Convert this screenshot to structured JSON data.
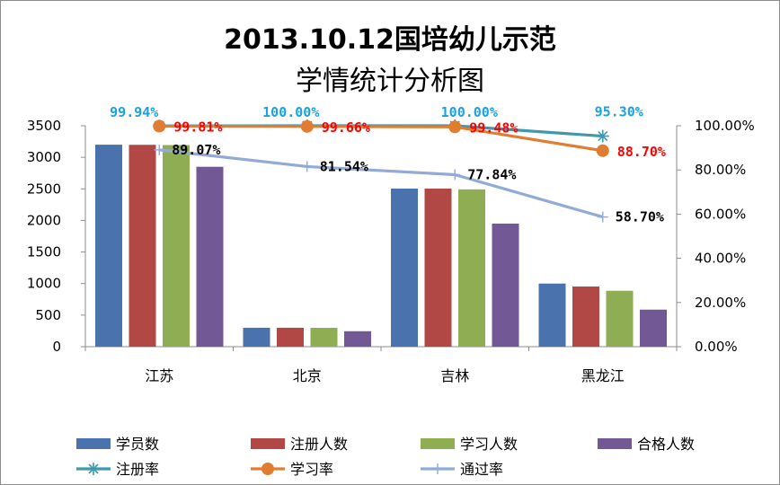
{
  "title_line1": "2013.10.12国培幼儿示范",
  "title_line2": "学情统计分析图",
  "chart_data": {
    "type": "bar",
    "categories": [
      "江苏",
      "北京",
      "吉林",
      "黑龙江"
    ],
    "series": [
      {
        "name": "学员数",
        "kind": "bar",
        "axis": "left",
        "color": "#4a73ad",
        "values": [
          3200,
          300,
          2505,
          1000
        ]
      },
      {
        "name": "注册人数",
        "kind": "bar",
        "axis": "left",
        "color": "#b24846",
        "values": [
          3198,
          300,
          2505,
          953
        ]
      },
      {
        "name": "学习人数",
        "kind": "bar",
        "axis": "left",
        "color": "#8fae54",
        "values": [
          3194,
          299,
          2492,
          886
        ]
      },
      {
        "name": "合格人数",
        "kind": "bar",
        "axis": "left",
        "color": "#735896",
        "values": [
          2850,
          245,
          1950,
          587
        ]
      },
      {
        "name": "注册率",
        "kind": "line",
        "axis": "right",
        "color": "#3f98ac",
        "marker": "star",
        "values": [
          99.94,
          100.0,
          100.0,
          95.3
        ],
        "labels": [
          "99.94%",
          "100.00%",
          "100.00%",
          "95.30%"
        ],
        "label_color": "#1aa1e0"
      },
      {
        "name": "学习率",
        "kind": "line",
        "axis": "right",
        "color": "#e07d30",
        "marker": "circle",
        "values": [
          99.81,
          99.66,
          99.48,
          88.7
        ],
        "labels": [
          "99.81%",
          "99.66%",
          "99.48%",
          "88.70%"
        ],
        "label_color": "#ff0000"
      },
      {
        "name": "通过率",
        "kind": "line",
        "axis": "right",
        "color": "#92aad6",
        "marker": "plus",
        "values": [
          89.07,
          81.54,
          77.84,
          58.7
        ],
        "labels": [
          "89.07%",
          "81.54%",
          "77.84%",
          "58.70%"
        ],
        "label_color": "#000000"
      }
    ],
    "y_left": {
      "min": 0,
      "max": 3500,
      "ticks": [
        "0",
        "500",
        "1000",
        "1500",
        "2000",
        "2500",
        "3000",
        "3500"
      ]
    },
    "y_right": {
      "min": 0,
      "max": 100,
      "ticks": [
        "0.00%",
        "20.00%",
        "40.00%",
        "60.00%",
        "80.00%",
        "100.00%"
      ]
    },
    "legend_position": "bottom",
    "grid": false
  }
}
